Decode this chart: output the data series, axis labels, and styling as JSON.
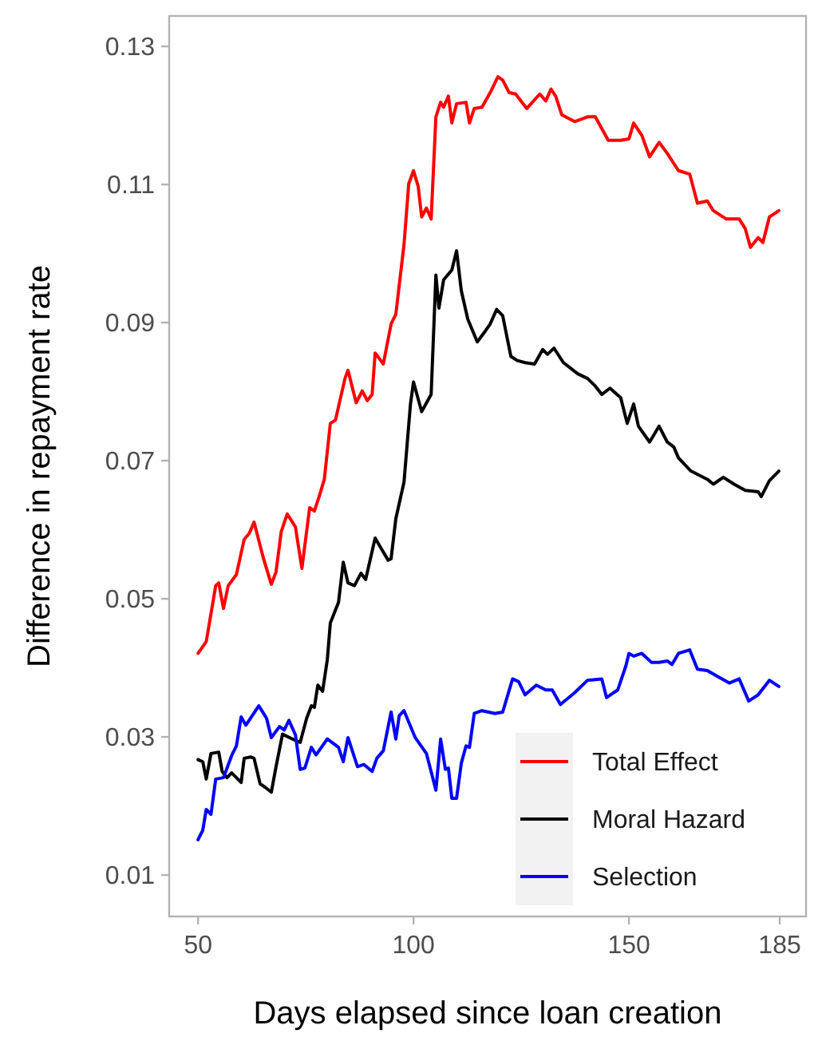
{
  "chart_data": {
    "type": "line",
    "xlabel": "Days elapsed since loan creation",
    "ylabel": "Difference in repayment rate",
    "xlim": [
      43.3,
      191.1
    ],
    "ylim": [
      0.004,
      0.1344
    ],
    "xticks": [
      50,
      100,
      150,
      185
    ],
    "yticks": [
      0.01,
      0.03,
      0.05,
      0.07,
      0.09,
      0.11,
      0.13
    ],
    "grid": false,
    "legend": "bottom right",
    "line_style": "solid",
    "marker": "none",
    "series": [
      {
        "name": "Total Effect",
        "color": "#ff0000",
        "x": [
          50,
          51.9,
          54.1,
          54.8,
          55.9,
          57,
          58.9,
          60.7,
          61.9,
          63,
          65.2,
          67,
          68.1,
          69.3,
          70.7,
          72.6,
          74.1,
          75.9,
          77,
          78.1,
          79.3,
          80.7,
          81.9,
          84.1,
          84.8,
          86.7,
          88.1,
          89.3,
          90.4,
          91.1,
          93,
          94.8,
          95.9,
          97.8,
          98.9,
          100,
          101.1,
          101.9,
          103,
          104.1,
          105.2,
          106.3,
          107,
          108.1,
          108.9,
          110,
          112.2,
          113,
          114.1,
          115.9,
          117.8,
          119.6,
          120.7,
          122.2,
          123.7,
          126.3,
          129.3,
          130.7,
          131.9,
          133,
          134.4,
          137.4,
          140.4,
          142.2,
          145.2,
          148.1,
          150,
          151.1,
          153,
          154.8,
          157,
          158.9,
          161.5,
          164.1,
          165.9,
          168.2,
          169.6,
          172.6,
          175.6,
          177,
          178.2,
          180,
          181.1,
          182.6,
          184.8
        ],
        "values": [
          0.0421,
          0.0438,
          0.0519,
          0.0523,
          0.0486,
          0.0519,
          0.0535,
          0.0586,
          0.0595,
          0.0611,
          0.0558,
          0.0521,
          0.0539,
          0.0597,
          0.0623,
          0.0604,
          0.0544,
          0.0632,
          0.0627,
          0.0648,
          0.0673,
          0.0754,
          0.0759,
          0.0819,
          0.0831,
          0.0784,
          0.0801,
          0.0787,
          0.0796,
          0.0856,
          0.084,
          0.0898,
          0.0912,
          0.1013,
          0.1101,
          0.112,
          0.1097,
          0.1053,
          0.1066,
          0.105,
          0.1198,
          0.1219,
          0.1212,
          0.1228,
          0.1189,
          0.1217,
          0.1219,
          0.1189,
          0.121,
          0.1212,
          0.1233,
          0.1256,
          0.1251,
          0.1233,
          0.1231,
          0.121,
          0.1231,
          0.1221,
          0.1238,
          0.1228,
          0.1201,
          0.1191,
          0.1198,
          0.1198,
          0.1164,
          0.1164,
          0.1166,
          0.1189,
          0.1171,
          0.114,
          0.1161,
          0.1145,
          0.112,
          0.1115,
          0.1073,
          0.1076,
          0.1062,
          0.105,
          0.105,
          0.1036,
          0.1009,
          0.1023,
          0.1016,
          0.1053,
          0.1062
        ]
      },
      {
        "name": "Moral Hazard",
        "color": "#000000",
        "x": [
          50,
          51.1,
          51.9,
          53,
          54.8,
          55.6,
          56.7,
          57.8,
          58.9,
          60,
          60.7,
          62.2,
          63,
          64.4,
          65.6,
          67,
          68.1,
          69.6,
          71.9,
          73.7,
          75.2,
          76.3,
          77,
          77.8,
          78.9,
          80,
          80.7,
          82.6,
          83.7,
          84.8,
          86.3,
          87.8,
          88.9,
          91.1,
          92.2,
          94.1,
          94.8,
          95.9,
          97.8,
          99.3,
          100,
          101.9,
          104.1,
          105.2,
          105.9,
          107,
          108.9,
          110,
          111.1,
          112.6,
          114.8,
          116.7,
          117.8,
          119.3,
          120.7,
          122.6,
          124.1,
          125.9,
          128.1,
          130,
          131.1,
          132.6,
          134.8,
          138.1,
          140.4,
          142.2,
          143.7,
          145.6,
          148.1,
          149.6,
          151.1,
          152.2,
          154.8,
          157,
          158.9,
          160.4,
          161.5,
          164.4,
          168.2,
          169.6,
          171.9,
          174.4,
          177,
          180,
          180.7,
          182.6,
          184.8
        ],
        "values": [
          0.0267,
          0.0264,
          0.0239,
          0.0276,
          0.0278,
          0.025,
          0.0241,
          0.0248,
          0.0241,
          0.0234,
          0.0269,
          0.0271,
          0.0269,
          0.0232,
          0.0227,
          0.022,
          0.0257,
          0.0304,
          0.0297,
          0.0292,
          0.0327,
          0.0345,
          0.0343,
          0.0375,
          0.0366,
          0.0412,
          0.0465,
          0.0495,
          0.0553,
          0.0523,
          0.0519,
          0.0537,
          0.0528,
          0.0588,
          0.0576,
          0.0556,
          0.0558,
          0.0616,
          0.0669,
          0.0782,
          0.0814,
          0.0771,
          0.0796,
          0.0969,
          0.0921,
          0.0962,
          0.0976,
          0.1004,
          0.0946,
          0.0905,
          0.0872,
          0.0888,
          0.0898,
          0.0919,
          0.091,
          0.0851,
          0.0845,
          0.0842,
          0.084,
          0.0861,
          0.0854,
          0.0863,
          0.0842,
          0.0826,
          0.0819,
          0.0808,
          0.0796,
          0.0805,
          0.0791,
          0.0754,
          0.0782,
          0.075,
          0.0727,
          0.075,
          0.0727,
          0.072,
          0.0704,
          0.0685,
          0.0673,
          0.0666,
          0.0676,
          0.0666,
          0.0657,
          0.0655,
          0.0648,
          0.0671,
          0.0685
        ]
      },
      {
        "name": "Selection",
        "color": "#0000ff",
        "x": [
          50,
          51.1,
          51.9,
          53,
          54.1,
          55.9,
          57.8,
          58.9,
          60,
          61.1,
          64.1,
          65.9,
          67,
          68.9,
          70,
          71.1,
          72.6,
          73.7,
          74.8,
          76.3,
          77.4,
          80,
          82.6,
          83.7,
          84.8,
          87,
          88.5,
          90.4,
          91.5,
          93,
          94.8,
          95.9,
          96.7,
          97.8,
          100.4,
          103,
          105.2,
          106.3,
          107.4,
          108.1,
          108.9,
          110,
          111.1,
          112.2,
          113,
          114.1,
          115.9,
          118.9,
          120.7,
          123,
          124.4,
          125.9,
          128.5,
          130.7,
          132.2,
          134.1,
          137.4,
          140.4,
          143.7,
          144.8,
          147.4,
          149.3,
          150,
          151.1,
          153,
          155.2,
          157,
          158.9,
          160,
          161.5,
          164.1,
          165.9,
          168.2,
          170.7,
          173.3,
          175.6,
          177.8,
          180,
          182.6,
          184.8
        ],
        "values": [
          0.0151,
          0.0165,
          0.0195,
          0.0188,
          0.0239,
          0.0241,
          0.0273,
          0.0287,
          0.0329,
          0.0317,
          0.0345,
          0.0327,
          0.0299,
          0.0315,
          0.031,
          0.0324,
          0.0303,
          0.0253,
          0.0255,
          0.0285,
          0.0274,
          0.0297,
          0.0285,
          0.0264,
          0.0299,
          0.0257,
          0.026,
          0.025,
          0.0269,
          0.028,
          0.0336,
          0.0297,
          0.0331,
          0.0338,
          0.0299,
          0.0276,
          0.0223,
          0.0297,
          0.0253,
          0.0255,
          0.0211,
          0.0211,
          0.0262,
          0.0287,
          0.0285,
          0.0334,
          0.0338,
          0.0334,
          0.0336,
          0.0384,
          0.038,
          0.0361,
          0.0375,
          0.0368,
          0.0368,
          0.0347,
          0.0364,
          0.0382,
          0.0384,
          0.0357,
          0.0368,
          0.0403,
          0.0421,
          0.0417,
          0.0421,
          0.0408,
          0.0408,
          0.041,
          0.0405,
          0.0421,
          0.0426,
          0.0398,
          0.0396,
          0.0387,
          0.0378,
          0.0384,
          0.0352,
          0.0361,
          0.0382,
          0.0373
        ]
      }
    ]
  }
}
